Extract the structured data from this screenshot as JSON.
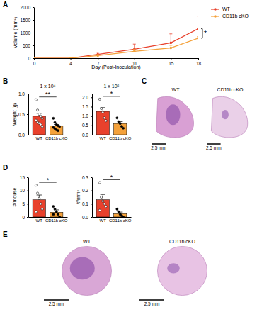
{
  "chart_data": [
    {
      "type": "line",
      "xlabel": "Day (Post-Inoculation)",
      "ylabel": "Volume (mm³)",
      "x": [
        0,
        4,
        7,
        11,
        15,
        18
      ],
      "xlim": [
        0,
        18
      ],
      "xticks": [
        0,
        4,
        7,
        11,
        15,
        18
      ],
      "ylim": [
        0,
        2000
      ],
      "yticks": [
        0,
        500,
        1000,
        1500,
        2000
      ],
      "legend": "upper right",
      "annotations": [
        "*"
      ],
      "series": [
        {
          "name": "WT",
          "color": "#e8412c",
          "values": [
            0,
            0,
            150,
            350,
            600,
            1150
          ],
          "errors": [
            0,
            0,
            80,
            200,
            350,
            500
          ]
        },
        {
          "name": "CD11b cKO",
          "color": "#f4a13a",
          "values": [
            0,
            0,
            100,
            270,
            400,
            780
          ],
          "errors": [
            0,
            0,
            40,
            80,
            100,
            60
          ]
        }
      ]
    },
    {
      "type": "bar",
      "title": "1 x 10⁴",
      "ylabel": "Weight (g)",
      "categories": [
        "WT",
        "CD11b cKO"
      ],
      "values": [
        0.45,
        0.22
      ],
      "errors": [
        0.07,
        0.03
      ],
      "points": [
        [
          0.85,
          0.6,
          0.5,
          0.45,
          0.4,
          0.35,
          0.3,
          0.28,
          0.25,
          0.2
        ],
        [
          0.4,
          0.3,
          0.25,
          0.22,
          0.2,
          0.18,
          0.15,
          0.12,
          0.1
        ]
      ],
      "colors": [
        "#e8412c",
        "#f4a13a"
      ],
      "ylim": [
        0,
        1.0
      ],
      "yticks": [
        {
          "value": 0,
          "label": "0.0"
        },
        {
          "value": 0.5,
          "label": "0.5"
        },
        {
          "value": 1.0,
          "label": "1.0"
        }
      ],
      "annotations": [
        "**"
      ]
    },
    {
      "type": "bar",
      "title": "1 x 10⁵",
      "categories": [
        "WT",
        "CD11b cKO"
      ],
      "values": [
        1.25,
        0.6
      ],
      "errors": [
        0.2,
        0.1
      ],
      "points": [
        [
          1.9,
          1.4,
          1.2,
          0.9,
          0.75
        ],
        [
          0.9,
          0.7,
          0.6,
          0.45,
          0.35
        ]
      ],
      "colors": [
        "#e8412c",
        "#f4a13a"
      ],
      "ylim": [
        0,
        2.2
      ],
      "yticks": [
        {
          "value": 0,
          "label": "0.0"
        },
        {
          "value": 0.5,
          "label": "0.5"
        },
        {
          "value": 1.0,
          "label": "1.0"
        },
        {
          "value": 1.5,
          "label": "1.5"
        },
        {
          "value": 2.0,
          "label": "2.0"
        }
      ],
      "annotations": [
        "*"
      ]
    },
    {
      "type": "bar",
      "ylabel": "#/mouse",
      "categories": [
        "WT",
        "CD11b cKO"
      ],
      "values": [
        6.5,
        1.8
      ],
      "errors": [
        1.8,
        0.9
      ],
      "points": [
        [
          12,
          9,
          7,
          5,
          3,
          2
        ],
        [
          4,
          3,
          2,
          1,
          0,
          1
        ]
      ],
      "colors": [
        "#e8412c",
        "#f4a13a"
      ],
      "ylim": [
        0,
        15
      ],
      "yticks": [
        0,
        5,
        10,
        15
      ],
      "annotations": [
        "*"
      ]
    },
    {
      "type": "bar",
      "ylabel": "#/mm²",
      "categories": [
        "WT",
        "CD11b cKO"
      ],
      "values": [
        0.13,
        0.025
      ],
      "errors": [
        0.04,
        0.012
      ],
      "points": [
        [
          0.26,
          0.15,
          0.12,
          0.1,
          0.08,
          0.05
        ],
        [
          0.06,
          0.04,
          0.02,
          0.01,
          0.0
        ]
      ],
      "colors": [
        "#e8412c",
        "#f4a13a"
      ],
      "ylim": [
        0,
        0.3
      ],
      "yticks": [
        {
          "value": 0,
          "label": "0.0"
        },
        {
          "value": 0.1,
          "label": "0.1"
        },
        {
          "value": 0.2,
          "label": "0.2"
        },
        {
          "value": 0.3,
          "label": "0.3"
        }
      ],
      "annotations": [
        "*"
      ]
    }
  ],
  "figure": {
    "panel_labels": [
      "A",
      "B",
      "C",
      "D",
      "E"
    ],
    "image_rows": [
      {
        "titles": [
          "WT",
          "CD11b cKO"
        ],
        "scale_bar": "2.5 mm"
      },
      {
        "titles": [
          "WT",
          "CD11b cKO"
        ],
        "scale_bar": "2.5 mm"
      }
    ]
  }
}
